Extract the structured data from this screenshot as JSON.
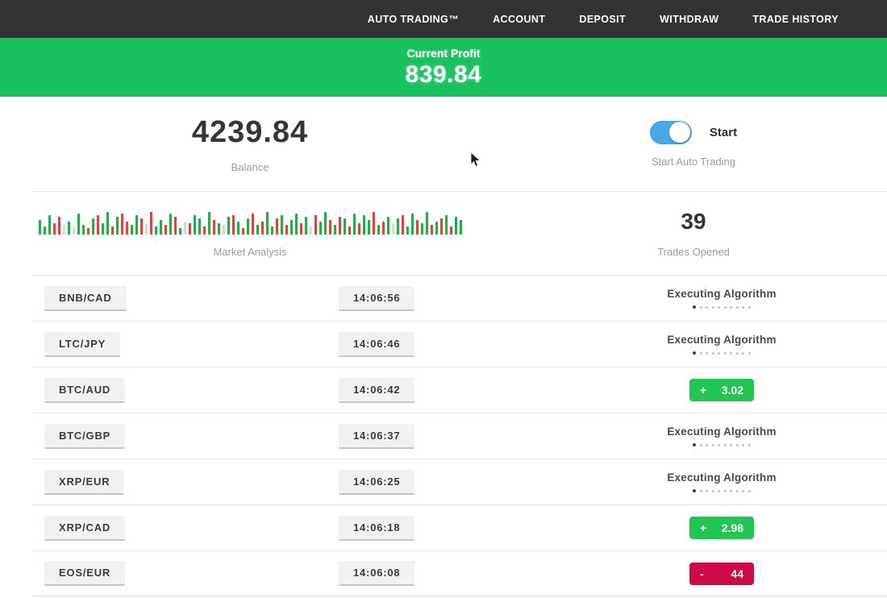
{
  "navbar": {
    "items": [
      {
        "label": "AUTO TRADING™"
      },
      {
        "label": "ACCOUNT"
      },
      {
        "label": "DEPOSIT"
      },
      {
        "label": "WITHDRAW"
      },
      {
        "label": "TRADE HISTORY"
      }
    ]
  },
  "banner": {
    "label": "Current Profit",
    "value": "839.84"
  },
  "stats": {
    "balance": {
      "value": "4239.84",
      "label": "Balance"
    },
    "auto_trading": {
      "toggle_label": "Start",
      "label": "Start Auto Trading",
      "toggle_on": true
    },
    "market_analysis": {
      "label": "Market Analysis"
    },
    "trades_opened": {
      "value": "39",
      "label": "Trades Opened"
    }
  },
  "colors": {
    "banner_green": "#17c25d",
    "badge_green": "#22c452",
    "badge_red": "#ce0b45",
    "toggle_blue": "#4aa7e8",
    "bar_green": "#2ba84a",
    "bar_red": "#d64541",
    "bar_pale": "#d4dbd4"
  },
  "executing_dots_total": 10,
  "executing_dots_active": 1,
  "market_bars": [
    [
      18,
      "g"
    ],
    [
      10,
      "g"
    ],
    [
      24,
      "g"
    ],
    [
      14,
      "r"
    ],
    [
      22,
      "r"
    ],
    [
      12,
      "p"
    ],
    [
      16,
      "g"
    ],
    [
      10,
      "p"
    ],
    [
      26,
      "g"
    ],
    [
      12,
      "g"
    ],
    [
      8,
      "r"
    ],
    [
      20,
      "g"
    ],
    [
      24,
      "r"
    ],
    [
      14,
      "g"
    ],
    [
      28,
      "g"
    ],
    [
      10,
      "r"
    ],
    [
      22,
      "g"
    ],
    [
      26,
      "r"
    ],
    [
      16,
      "r"
    ],
    [
      12,
      "g"
    ],
    [
      24,
      "g"
    ],
    [
      20,
      "r"
    ],
    [
      14,
      "p"
    ],
    [
      28,
      "r"
    ],
    [
      10,
      "g"
    ],
    [
      18,
      "g"
    ],
    [
      12,
      "r"
    ],
    [
      26,
      "g"
    ],
    [
      22,
      "r"
    ],
    [
      8,
      "g"
    ],
    [
      16,
      "p"
    ],
    [
      14,
      "r"
    ],
    [
      24,
      "g"
    ],
    [
      20,
      "g"
    ],
    [
      10,
      "r"
    ],
    [
      28,
      "g"
    ],
    [
      18,
      "r"
    ],
    [
      14,
      "g"
    ],
    [
      12,
      "p"
    ],
    [
      22,
      "g"
    ],
    [
      24,
      "r"
    ],
    [
      16,
      "g"
    ],
    [
      8,
      "r"
    ],
    [
      20,
      "g"
    ],
    [
      26,
      "r"
    ],
    [
      12,
      "g"
    ],
    [
      16,
      "r"
    ],
    [
      28,
      "g"
    ],
    [
      10,
      "g"
    ],
    [
      20,
      "r"
    ],
    [
      24,
      "g"
    ],
    [
      12,
      "r"
    ],
    [
      18,
      "g"
    ],
    [
      26,
      "g"
    ],
    [
      14,
      "r"
    ],
    [
      22,
      "g"
    ],
    [
      10,
      "p"
    ],
    [
      24,
      "r"
    ],
    [
      16,
      "g"
    ],
    [
      28,
      "g"
    ],
    [
      18,
      "r"
    ],
    [
      12,
      "g"
    ],
    [
      22,
      "r"
    ],
    [
      20,
      "g"
    ],
    [
      10,
      "r"
    ],
    [
      26,
      "g"
    ],
    [
      14,
      "r"
    ],
    [
      24,
      "g"
    ],
    [
      18,
      "g"
    ],
    [
      28,
      "r"
    ],
    [
      12,
      "g"
    ],
    [
      16,
      "r"
    ],
    [
      22,
      "g"
    ],
    [
      14,
      "p"
    ],
    [
      20,
      "g"
    ],
    [
      24,
      "r"
    ],
    [
      10,
      "g"
    ],
    [
      26,
      "g"
    ],
    [
      18,
      "r"
    ],
    [
      14,
      "g"
    ],
    [
      28,
      "g"
    ],
    [
      12,
      "r"
    ],
    [
      16,
      "g"
    ],
    [
      20,
      "r"
    ],
    [
      24,
      "g"
    ],
    [
      10,
      "r"
    ],
    [
      22,
      "g"
    ],
    [
      18,
      "g"
    ]
  ],
  "trades": [
    {
      "pair": "BNB/CAD",
      "time": "14:06:56",
      "status": "executing",
      "status_label": "Executing Algorithm"
    },
    {
      "pair": "LTC/JPY",
      "time": "14:06:46",
      "status": "executing",
      "status_label": "Executing Algorithm"
    },
    {
      "pair": "BTC/AUD",
      "time": "14:06:42",
      "status": "profit",
      "sign": "+",
      "amount": "3.02"
    },
    {
      "pair": "BTC/GBP",
      "time": "14:06:37",
      "status": "executing",
      "status_label": "Executing Algorithm"
    },
    {
      "pair": "XRP/EUR",
      "time": "14:06:25",
      "status": "executing",
      "status_label": "Executing Algorithm"
    },
    {
      "pair": "XRP/CAD",
      "time": "14:06:18",
      "status": "profit",
      "sign": "+",
      "amount": "2.98"
    },
    {
      "pair": "EOS/EUR",
      "time": "14:06:08",
      "status": "loss",
      "sign": "-",
      "amount": "44"
    }
  ]
}
